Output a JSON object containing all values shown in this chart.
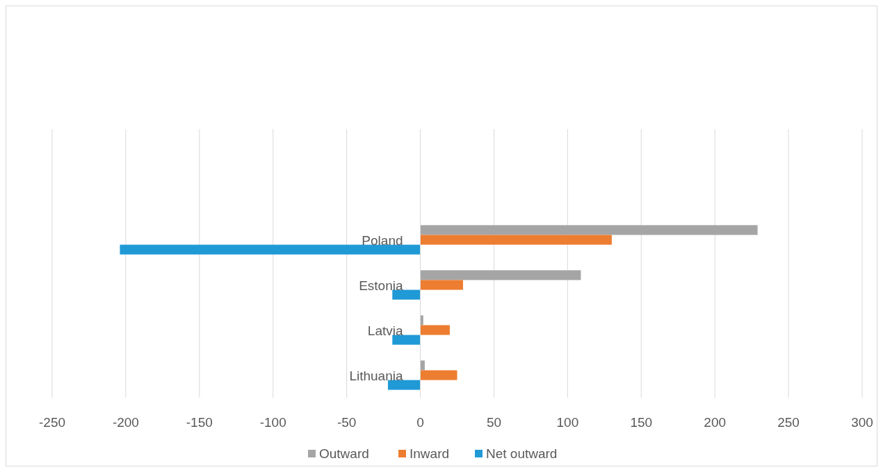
{
  "chart_data": {
    "type": "bar",
    "orientation": "horizontal",
    "categories": [
      "Poland",
      "Estonia",
      "Latvia",
      "Lithuania"
    ],
    "series": [
      {
        "name": "Outward",
        "color": "#a5a5a5",
        "values": [
          229,
          109,
          2,
          3
        ]
      },
      {
        "name": "Inward",
        "color": "#ed7d31",
        "values": [
          130,
          29,
          20,
          25
        ]
      },
      {
        "name": "Net outward",
        "color": "#1f9ad6",
        "values": [
          -204,
          -19,
          -19,
          -22
        ]
      }
    ],
    "xlim": [
      -250,
      300
    ],
    "xticks": [
      -250,
      -200,
      -150,
      -100,
      -50,
      0,
      50,
      100,
      150,
      200,
      250,
      300
    ],
    "grid": "x",
    "legend": "bottom"
  }
}
